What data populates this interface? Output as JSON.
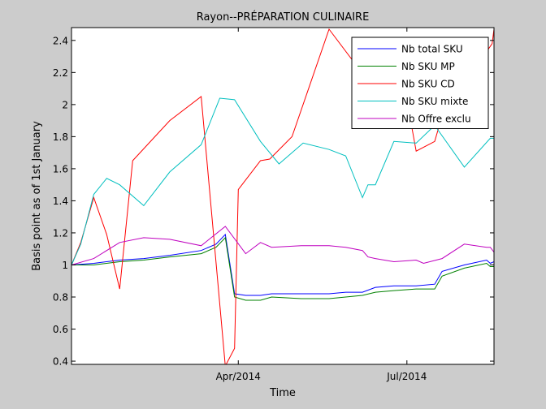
{
  "chart_data": {
    "type": "line",
    "title": "Rayon--PRÉPARATION CULINAIRE",
    "xlabel": "Time",
    "ylabel": "Basis point as of 1st January",
    "ylim": [
      0.38,
      2.48
    ],
    "xlim": [
      "2014-01-01",
      "2014-08-17"
    ],
    "grid": false,
    "legend_position": "top-right",
    "yticks": [
      0.4,
      0.6,
      0.8,
      1,
      1.2,
      1.4,
      1.6,
      1.8,
      2,
      2.2,
      2.4
    ],
    "ytick_labels": [
      "0.4",
      "0.6",
      "0.8",
      "1",
      "1.2",
      "1.4",
      "1.6",
      "1.8",
      "2",
      "2.2",
      "2.4"
    ],
    "xticks": [
      "2014-04-01",
      "2014-07-01"
    ],
    "xtick_labels": [
      "Apr/2014",
      "Jul/2014"
    ],
    "series": [
      {
        "name": "Nb total SKU",
        "color": "#0000ff",
        "points": [
          [
            "2014-01-01",
            1.0
          ],
          [
            "2014-01-13",
            1.01
          ],
          [
            "2014-01-27",
            1.03
          ],
          [
            "2014-02-09",
            1.04
          ],
          [
            "2014-02-23",
            1.06
          ],
          [
            "2014-03-12",
            1.09
          ],
          [
            "2014-03-20",
            1.13
          ],
          [
            "2014-03-25",
            1.19
          ],
          [
            "2014-03-30",
            0.82
          ],
          [
            "2014-04-05",
            0.81
          ],
          [
            "2014-04-13",
            0.81
          ],
          [
            "2014-04-19",
            0.82
          ],
          [
            "2014-05-05",
            0.82
          ],
          [
            "2014-05-20",
            0.82
          ],
          [
            "2014-05-29",
            0.83
          ],
          [
            "2014-06-07",
            0.83
          ],
          [
            "2014-06-14",
            0.86
          ],
          [
            "2014-06-24",
            0.87
          ],
          [
            "2014-07-06",
            0.87
          ],
          [
            "2014-07-16",
            0.88
          ],
          [
            "2014-07-20",
            0.96
          ],
          [
            "2014-08-01",
            1.0
          ],
          [
            "2014-08-13",
            1.03
          ],
          [
            "2014-08-15",
            1.01
          ],
          [
            "2014-08-17",
            1.02
          ]
        ]
      },
      {
        "name": "Nb SKU MP",
        "color": "#008000",
        "points": [
          [
            "2014-01-01",
            1.0
          ],
          [
            "2014-01-13",
            1.0
          ],
          [
            "2014-01-27",
            1.02
          ],
          [
            "2014-02-09",
            1.03
          ],
          [
            "2014-02-23",
            1.05
          ],
          [
            "2014-03-12",
            1.07
          ],
          [
            "2014-03-20",
            1.11
          ],
          [
            "2014-03-25",
            1.17
          ],
          [
            "2014-03-30",
            0.8
          ],
          [
            "2014-04-05",
            0.78
          ],
          [
            "2014-04-13",
            0.78
          ],
          [
            "2014-04-19",
            0.8
          ],
          [
            "2014-05-05",
            0.79
          ],
          [
            "2014-05-20",
            0.79
          ],
          [
            "2014-05-29",
            0.8
          ],
          [
            "2014-06-07",
            0.81
          ],
          [
            "2014-06-14",
            0.83
          ],
          [
            "2014-06-24",
            0.84
          ],
          [
            "2014-07-06",
            0.85
          ],
          [
            "2014-07-16",
            0.85
          ],
          [
            "2014-07-20",
            0.93
          ],
          [
            "2014-08-01",
            0.98
          ],
          [
            "2014-08-13",
            1.01
          ],
          [
            "2014-08-15",
            0.99
          ],
          [
            "2014-08-17",
            0.99
          ]
        ]
      },
      {
        "name": "Nb SKU CD",
        "color": "#ff0000",
        "points": [
          [
            "2014-01-01",
            1.0
          ],
          [
            "2014-01-06",
            1.14
          ],
          [
            "2014-01-13",
            1.42
          ],
          [
            "2014-01-20",
            1.19
          ],
          [
            "2014-01-27",
            0.85
          ],
          [
            "2014-02-03",
            1.65
          ],
          [
            "2014-02-23",
            1.9
          ],
          [
            "2014-03-12",
            2.05
          ],
          [
            "2014-03-25",
            0.37
          ],
          [
            "2014-03-30",
            0.48
          ],
          [
            "2014-04-01",
            1.47
          ],
          [
            "2014-04-13",
            1.65
          ],
          [
            "2014-04-18",
            1.66
          ],
          [
            "2014-04-30",
            1.8
          ],
          [
            "2014-05-20",
            2.47
          ],
          [
            "2014-06-04",
            2.24
          ],
          [
            "2014-06-14",
            2.24
          ],
          [
            "2014-06-24",
            2.24
          ],
          [
            "2014-06-27",
            2.28
          ],
          [
            "2014-07-06",
            1.71
          ],
          [
            "2014-07-16",
            1.77
          ],
          [
            "2014-07-20",
            1.93
          ],
          [
            "2014-08-16",
            2.38
          ],
          [
            "2014-08-17",
            2.47
          ]
        ]
      },
      {
        "name": "Nb SKU mixte",
        "color": "#00bfbf",
        "points": [
          [
            "2014-01-01",
            1.0
          ],
          [
            "2014-01-06",
            1.13
          ],
          [
            "2014-01-13",
            1.44
          ],
          [
            "2014-01-20",
            1.54
          ],
          [
            "2014-01-27",
            1.5
          ],
          [
            "2014-02-09",
            1.37
          ],
          [
            "2014-02-23",
            1.58
          ],
          [
            "2014-03-12",
            1.75
          ],
          [
            "2014-03-22",
            2.04
          ],
          [
            "2014-03-30",
            2.03
          ],
          [
            "2014-04-13",
            1.77
          ],
          [
            "2014-04-23",
            1.63
          ],
          [
            "2014-05-06",
            1.76
          ],
          [
            "2014-05-20",
            1.72
          ],
          [
            "2014-05-29",
            1.68
          ],
          [
            "2014-06-07",
            1.42
          ],
          [
            "2014-06-10",
            1.5
          ],
          [
            "2014-06-14",
            1.5
          ],
          [
            "2014-06-24",
            1.77
          ],
          [
            "2014-07-06",
            1.76
          ],
          [
            "2014-07-16",
            1.87
          ],
          [
            "2014-08-01",
            1.61
          ],
          [
            "2014-08-15",
            1.79
          ],
          [
            "2014-08-17",
            1.79
          ]
        ]
      },
      {
        "name": "Nb Offre exclu",
        "color": "#bf00bf",
        "points": [
          [
            "2014-01-01",
            1.0
          ],
          [
            "2014-01-13",
            1.04
          ],
          [
            "2014-01-27",
            1.14
          ],
          [
            "2014-02-09",
            1.17
          ],
          [
            "2014-02-23",
            1.16
          ],
          [
            "2014-03-12",
            1.12
          ],
          [
            "2014-03-25",
            1.24
          ],
          [
            "2014-04-05",
            1.07
          ],
          [
            "2014-04-13",
            1.14
          ],
          [
            "2014-04-19",
            1.11
          ],
          [
            "2014-05-05",
            1.12
          ],
          [
            "2014-05-20",
            1.12
          ],
          [
            "2014-05-29",
            1.11
          ],
          [
            "2014-06-07",
            1.09
          ],
          [
            "2014-06-10",
            1.05
          ],
          [
            "2014-06-14",
            1.04
          ],
          [
            "2014-06-24",
            1.02
          ],
          [
            "2014-07-06",
            1.03
          ],
          [
            "2014-07-10",
            1.01
          ],
          [
            "2014-07-20",
            1.04
          ],
          [
            "2014-08-01",
            1.13
          ],
          [
            "2014-08-13",
            1.11
          ],
          [
            "2014-08-15",
            1.11
          ],
          [
            "2014-08-17",
            1.08
          ]
        ]
      }
    ]
  }
}
